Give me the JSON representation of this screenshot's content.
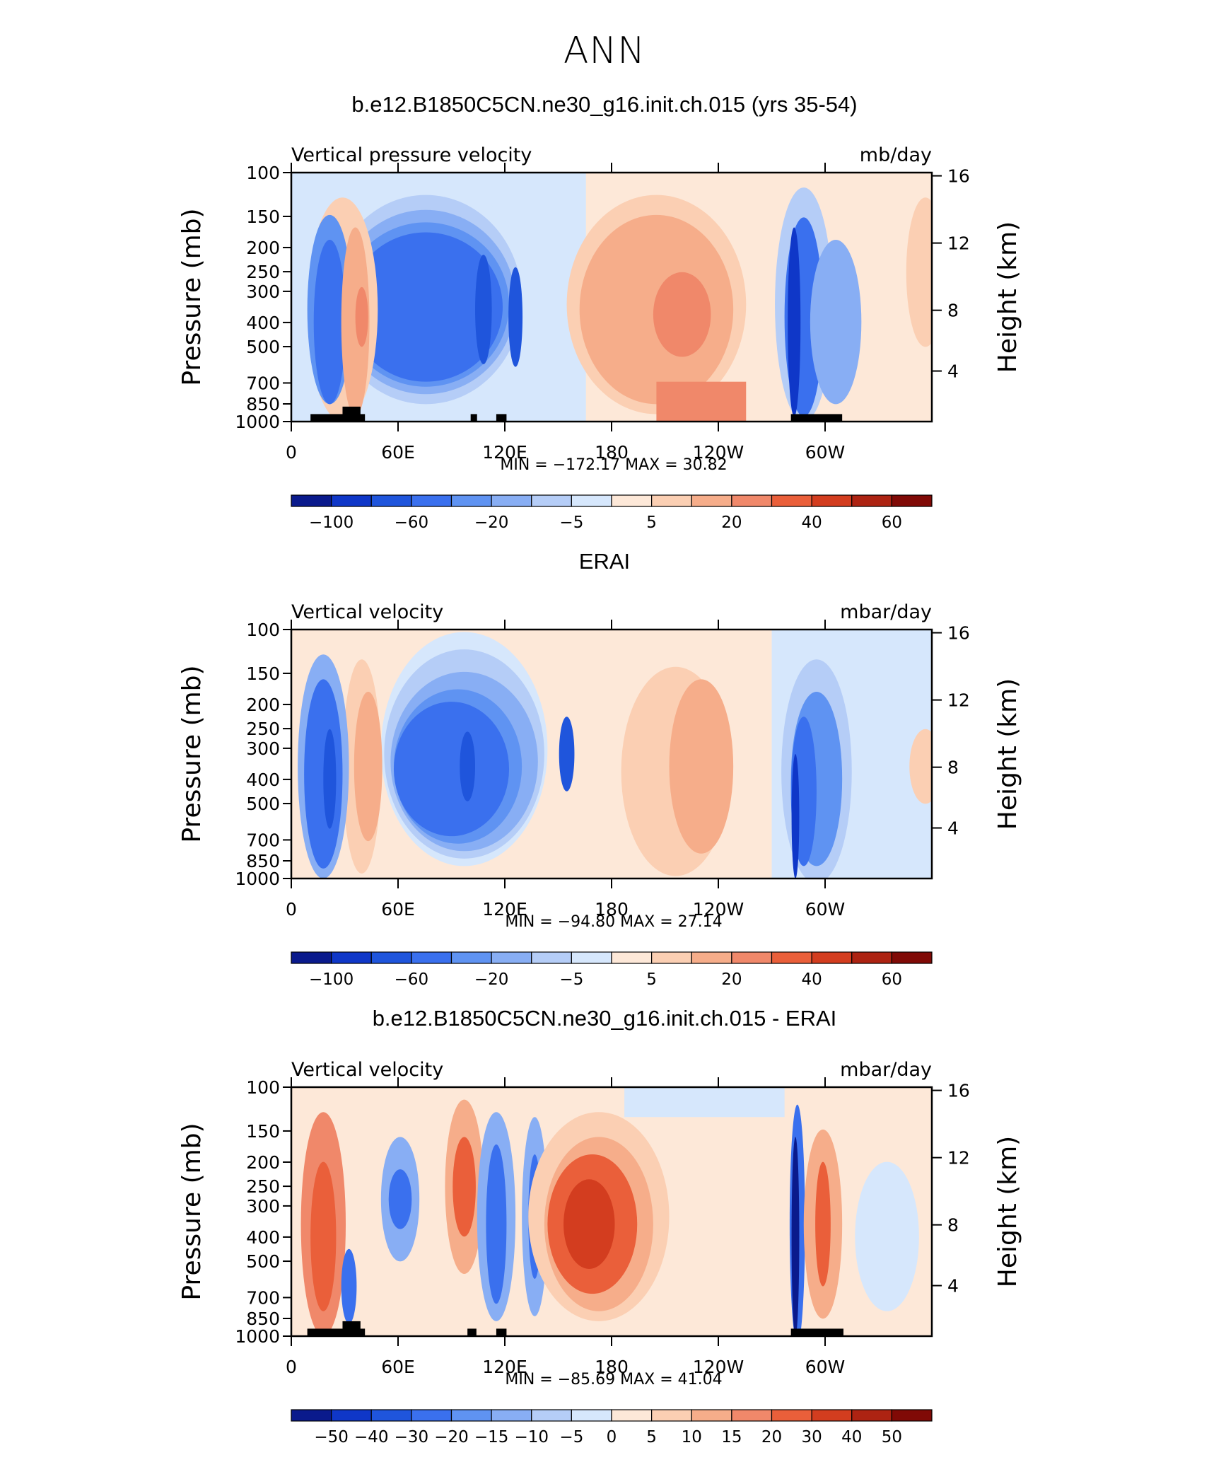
{
  "figure": {
    "title": "ANN"
  },
  "chart_data": [
    {
      "type": "heatmap",
      "title": "b.e12.B1850C5CN.ne30_g16.init.ch.015 (yrs 35-54)",
      "variable": "Vertical pressure velocity",
      "units": "mb/day",
      "ylabel": "Pressure (mb)",
      "ylabel_right": "Height (km)",
      "x_ticks": [
        "0",
        "60E",
        "120E",
        "180",
        "120W",
        "60W"
      ],
      "y_ticks": [
        "100",
        "150",
        "200",
        "250",
        "300",
        "400",
        "500",
        "700",
        "850",
        "1000"
      ],
      "y_ticks_right": [
        "16",
        "12",
        "8",
        "4"
      ],
      "stats": "MIN = −172.17   MAX =   30.82",
      "colorbar_labels": [
        "−100",
        "−60",
        "−20",
        "−5",
        "5",
        "20",
        "40",
        "60"
      ],
      "colorbar_colors": [
        "#0a1a8c",
        "#0f37c8",
        "#1f55dc",
        "#3a70ee",
        "#5f93f2",
        "#88aef4",
        "#b5cdf7",
        "#d6e7fc",
        "#fde8d8",
        "#fbcfb3",
        "#f6ad8a",
        "#f0886a",
        "#ea5f3a",
        "#d33d1f",
        "#ad2312",
        "#800a06"
      ],
      "y_scale": "log"
    },
    {
      "type": "heatmap",
      "title": "ERAI",
      "variable": "Vertical velocity",
      "units": "mbar/day",
      "ylabel": "Pressure (mb)",
      "ylabel_right": "Height (km)",
      "x_ticks": [
        "0",
        "60E",
        "120E",
        "180",
        "120W",
        "60W"
      ],
      "y_ticks": [
        "100",
        "150",
        "200",
        "250",
        "300",
        "400",
        "500",
        "700",
        "850",
        "1000"
      ],
      "y_ticks_right": [
        "16",
        "12",
        "8",
        "4"
      ],
      "stats": "MIN =  −94.80   MAX =   27.14",
      "colorbar_labels": [
        "−100",
        "−60",
        "−20",
        "−5",
        "5",
        "20",
        "40",
        "60"
      ],
      "colorbar_colors": [
        "#0a1a8c",
        "#0f37c8",
        "#1f55dc",
        "#3a70ee",
        "#5f93f2",
        "#88aef4",
        "#b5cdf7",
        "#d6e7fc",
        "#fde8d8",
        "#fbcfb3",
        "#f6ad8a",
        "#f0886a",
        "#ea5f3a",
        "#d33d1f",
        "#ad2312",
        "#800a06"
      ],
      "y_scale": "log"
    },
    {
      "type": "heatmap",
      "title": "b.e12.B1850C5CN.ne30_g16.init.ch.015 - ERAI",
      "variable": "Vertical velocity",
      "units": "mbar/day",
      "ylabel": "Pressure (mb)",
      "ylabel_right": "Height (km)",
      "x_ticks": [
        "0",
        "60E",
        "120E",
        "180",
        "120W",
        "60W"
      ],
      "y_ticks": [
        "100",
        "150",
        "200",
        "250",
        "300",
        "400",
        "500",
        "700",
        "850",
        "1000"
      ],
      "y_ticks_right": [
        "16",
        "12",
        "8",
        "4"
      ],
      "stats": "MIN =  −85.69   MAX =   41.04",
      "colorbar_labels": [
        "−50",
        "−40",
        "−30",
        "−20",
        "−15",
        "−10",
        "−5",
        "0",
        "5",
        "10",
        "15",
        "20",
        "30",
        "40",
        "50"
      ],
      "colorbar_colors": [
        "#0a1a8c",
        "#0f37c8",
        "#1f55dc",
        "#3a70ee",
        "#5f93f2",
        "#88aef4",
        "#b5cdf7",
        "#d6e7fc",
        "#fde8d8",
        "#fbcfb3",
        "#f6ad8a",
        "#f0886a",
        "#ea5f3a",
        "#d33d1f",
        "#ad2312",
        "#800a06"
      ],
      "y_scale": "log"
    }
  ]
}
